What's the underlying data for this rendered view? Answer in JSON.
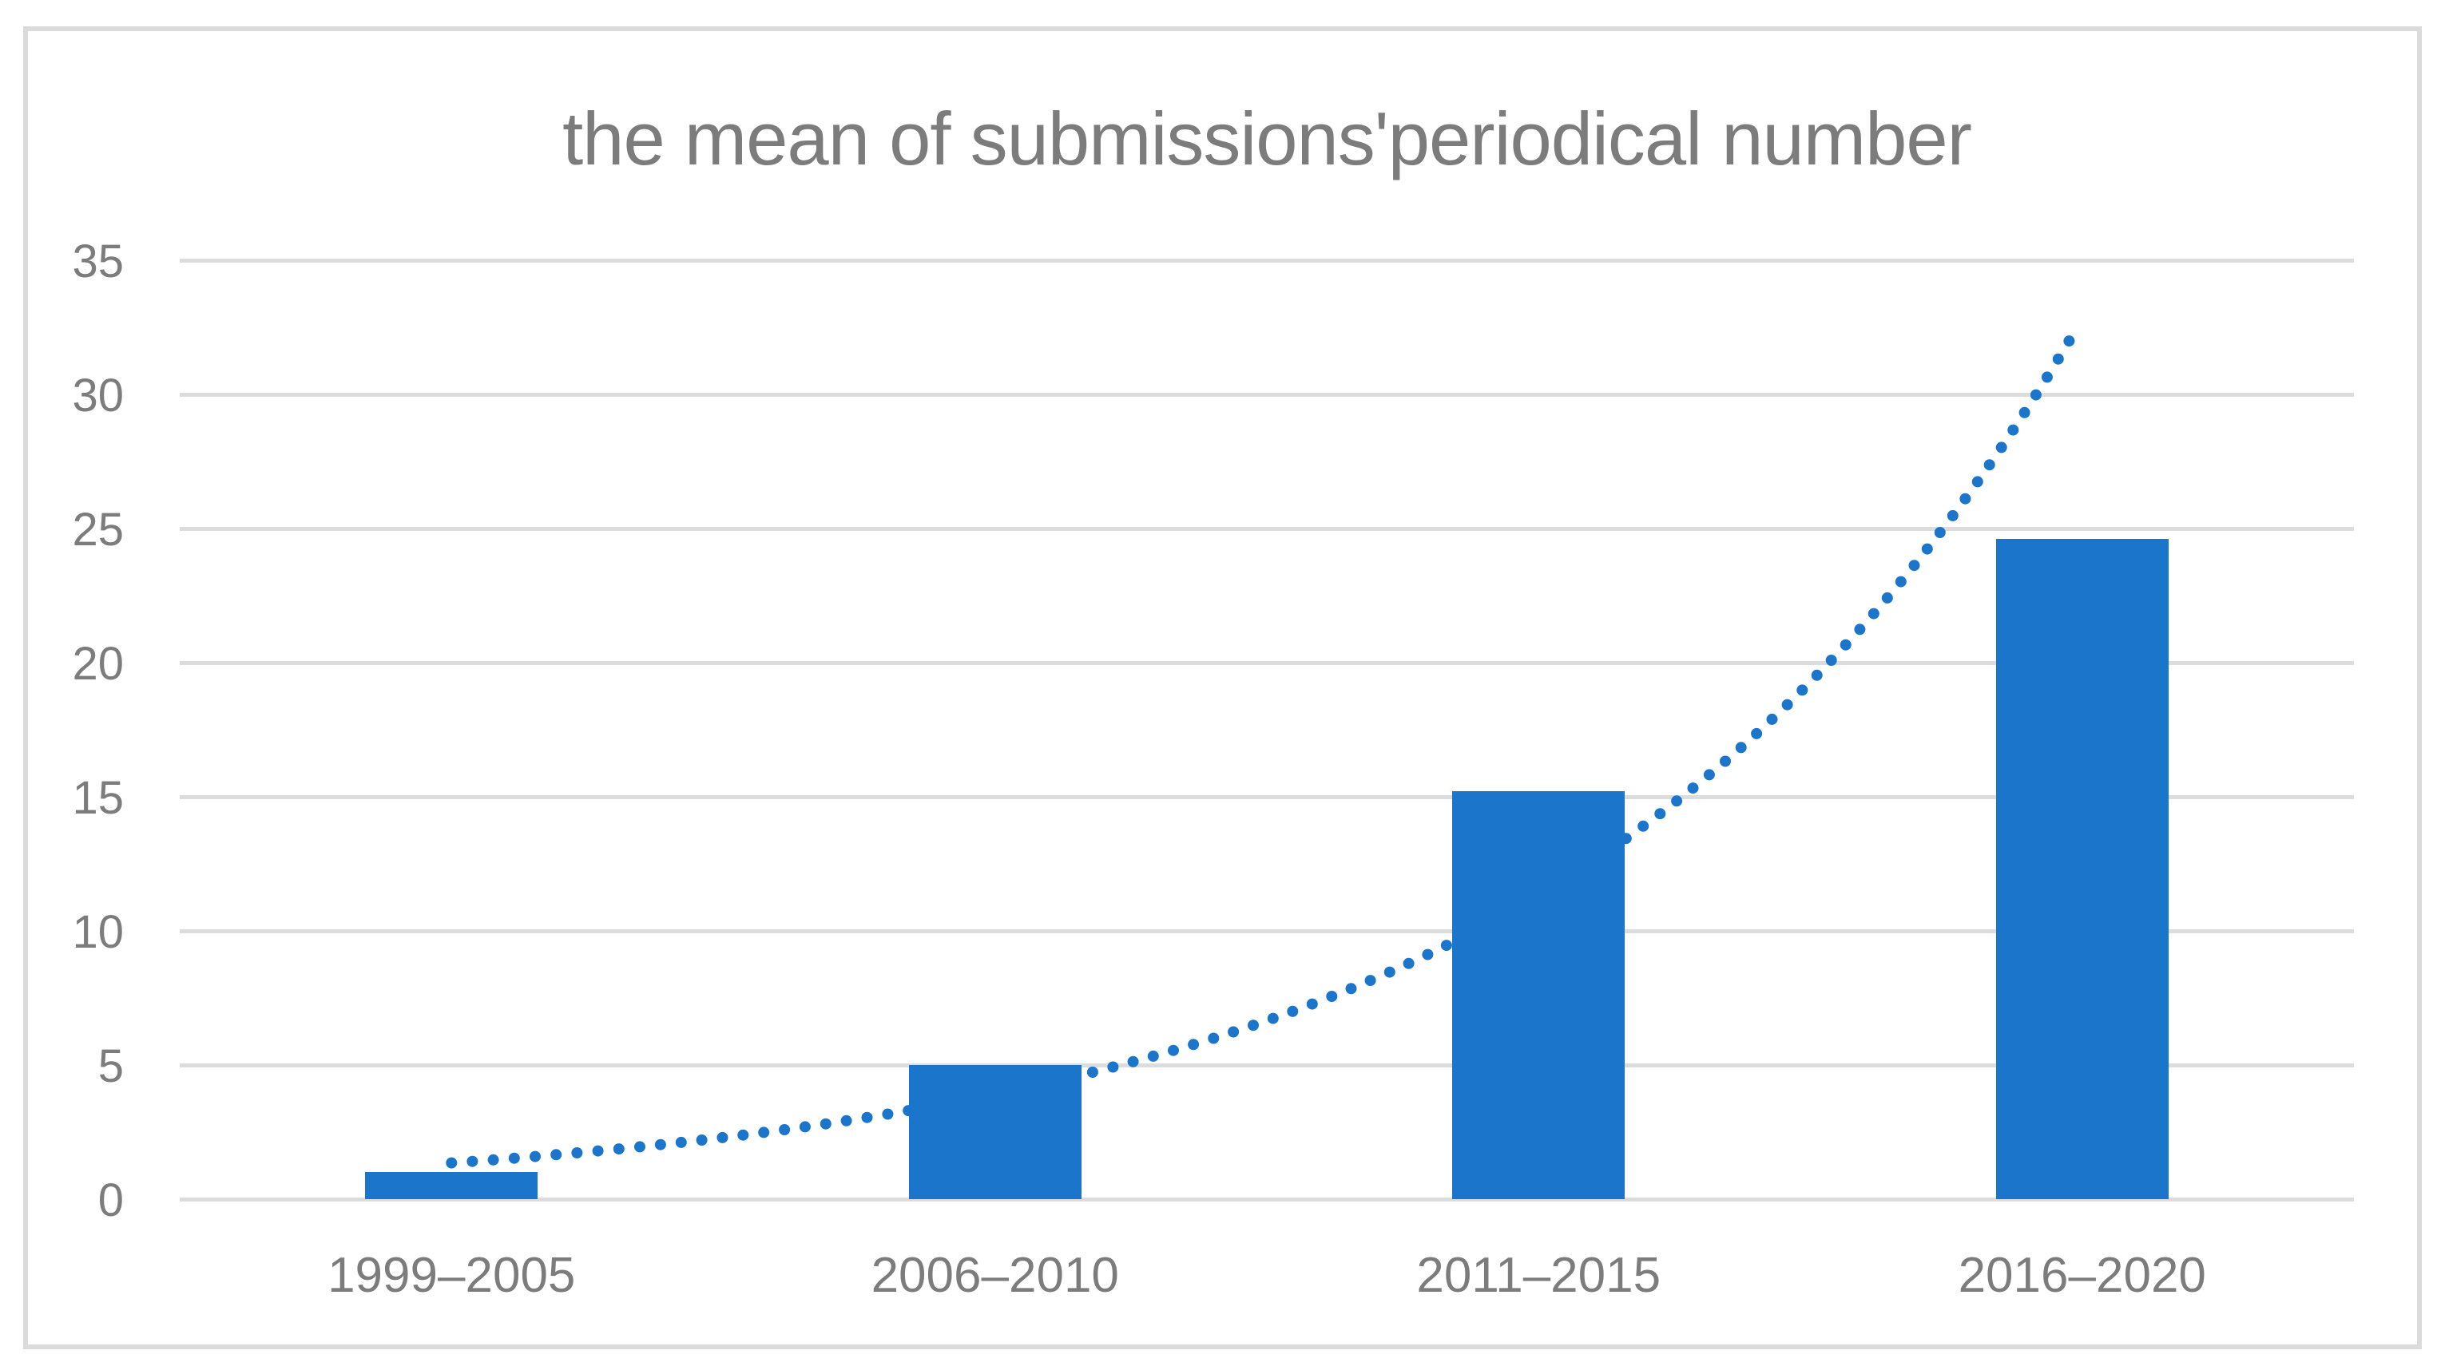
{
  "chart_data": {
    "type": "bar",
    "title": "the mean of submissions'periodical number",
    "categories": [
      "1999–2005",
      "2006–2010",
      "2011–2015",
      "2016–2020"
    ],
    "values": [
      1.0,
      5.0,
      15.2,
      24.6
    ],
    "xlabel": "",
    "ylabel": "",
    "ylim": [
      0,
      35
    ],
    "yticks": [
      0,
      5,
      10,
      15,
      20,
      25,
      30,
      35
    ],
    "grid": "horizontal",
    "legend_position": "none",
    "trendline": {
      "shape": "exponential",
      "style": "dotted",
      "start_category_index": 1,
      "end_category_index": 3.985,
      "start_value": 1.35,
      "end_value": 32.3
    },
    "colors": {
      "bar": "#1b75cb",
      "trendline": "#1b75cb",
      "text": "#7c7c7c",
      "gridline": "#dcdcdc",
      "frame": "#dbdbdb",
      "background": "#ffffff"
    }
  }
}
